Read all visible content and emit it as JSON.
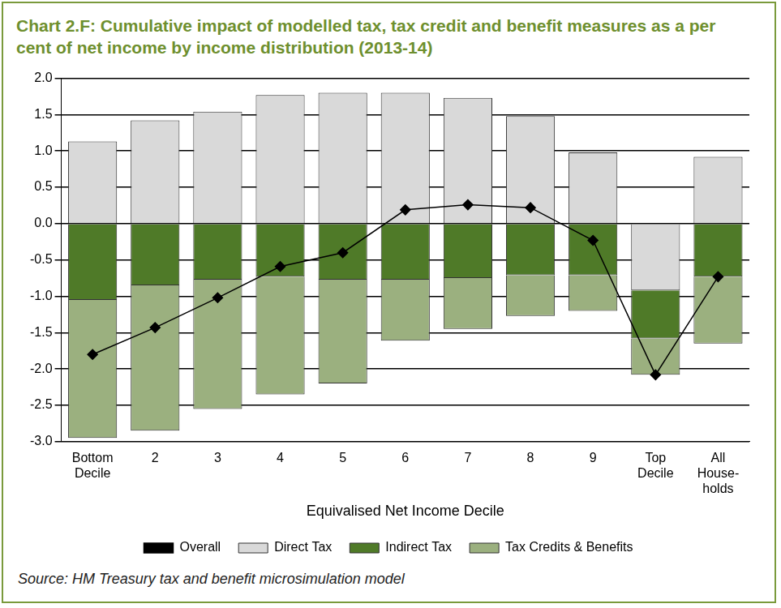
{
  "chart_data": {
    "type": "bar",
    "title": "Chart 2.F: Cumulative impact of modelled tax, tax credit and benefit measures as a per cent of net income by income distribution (2013-14)",
    "source": "Source: HM Treasury tax and benefit microsimulation model",
    "x_label": "Equivalised Net Income Decile",
    "categories": [
      [
        "Bottom",
        "Decile"
      ],
      "2",
      "3",
      "4",
      "5",
      "6",
      "7",
      "8",
      "9",
      [
        "Top",
        "Decile"
      ],
      [
        "All",
        "House-",
        "holds"
      ]
    ],
    "stacked": true,
    "grid": true,
    "legend": "bottom",
    "ylim": [
      -3.0,
      2.0
    ],
    "yticks": [
      {
        "value": -3,
        "label": "-3.0"
      },
      -2.5,
      {
        "value": -2,
        "label": "-2.0"
      },
      -1.5,
      {
        "value": -1,
        "label": "-1.0"
      },
      -0.5,
      {
        "value": 0,
        "label": "0.0"
      },
      0.5,
      {
        "value": 1,
        "label": "1.0"
      },
      1.5,
      {
        "value": 2,
        "label": "2.0"
      }
    ],
    "series": [
      {
        "name": "Direct Tax",
        "type": "bar",
        "color": "#d9d9d9",
        "values": [
          1.13,
          1.42,
          1.54,
          1.77,
          1.8,
          1.8,
          1.73,
          1.48,
          0.98,
          -0.92,
          0.92
        ]
      },
      {
        "name": "Indirect Tax",
        "type": "bar",
        "color": "#4f7a28",
        "values": [
          -1.05,
          -0.85,
          -0.77,
          -0.73,
          -0.77,
          -0.77,
          -0.75,
          -0.71,
          -0.71,
          -0.66,
          -0.73
        ]
      },
      {
        "name": "Tax Credits & Benefits",
        "type": "bar",
        "color": "#9bb07f",
        "values": [
          -1.9,
          -2.0,
          -1.78,
          -1.62,
          -1.43,
          -0.84,
          -0.7,
          -0.56,
          -0.49,
          -0.5,
          -0.92
        ]
      },
      {
        "name": "Overall",
        "type": "line",
        "color": "#000000",
        "marker": "diamond",
        "line_style": "solid",
        "values": [
          -1.8,
          -1.43,
          -1.02,
          -0.59,
          -0.4,
          0.19,
          0.26,
          0.22,
          -0.23,
          -2.08,
          -0.73
        ]
      }
    ]
  }
}
